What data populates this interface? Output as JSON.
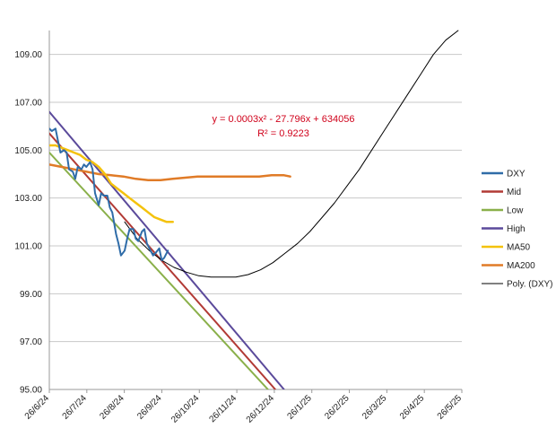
{
  "chart_data": {
    "type": "line",
    "ylim": [
      95,
      110
    ],
    "yticks": [
      "95.00",
      "97.00",
      "99.00",
      "101.00",
      "103.00",
      "105.00",
      "107.00",
      "109.00"
    ],
    "xticks": [
      "26/6/24",
      "26/7/24",
      "26/8/24",
      "26/9/24",
      "26/10/24",
      "26/11/24",
      "26/12/24",
      "26/1/25",
      "26/2/25",
      "26/3/25",
      "26/4/25",
      "26/5/25"
    ],
    "x_range": [
      "2024-06-26",
      "2025-05-26"
    ],
    "grid": true,
    "legend_position": "right",
    "trendline_equation": "y = 0.0003x² - 27.796x + 634056",
    "trendline_r2": "R² = 0.9223",
    "colors": {
      "DXY": "#2f6ca8",
      "Mid": "#b23a35",
      "Low": "#8ab04a",
      "High": "#5b4a9b",
      "MA50": "#f4c20d",
      "MA200": "#e07b27",
      "Poly": "#000000"
    },
    "series": [
      {
        "name": "DXY",
        "x": [
          "2024-06-26",
          "2024-06-28",
          "2024-07-01",
          "2024-07-03",
          "2024-07-05",
          "2024-07-08",
          "2024-07-10",
          "2024-07-12",
          "2024-07-15",
          "2024-07-17",
          "2024-07-19",
          "2024-07-22",
          "2024-07-24",
          "2024-07-26",
          "2024-07-29",
          "2024-07-31",
          "2024-08-02",
          "2024-08-05",
          "2024-08-07",
          "2024-08-09",
          "2024-08-12",
          "2024-08-14",
          "2024-08-16",
          "2024-08-19",
          "2024-08-21",
          "2024-08-23",
          "2024-08-26",
          "2024-08-28",
          "2024-08-30",
          "2024-09-02",
          "2024-09-04",
          "2024-09-06",
          "2024-09-09",
          "2024-09-11",
          "2024-09-13",
          "2024-09-16",
          "2024-09-18",
          "2024-09-20",
          "2024-09-23",
          "2024-09-25",
          "2024-09-27",
          "2024-09-30"
        ],
        "values": [
          105.9,
          105.8,
          105.9,
          105.4,
          104.9,
          105.0,
          104.9,
          104.2,
          104.1,
          103.8,
          104.3,
          104.2,
          104.4,
          104.3,
          104.5,
          104.2,
          103.2,
          102.7,
          103.2,
          103.1,
          103.1,
          102.6,
          102.4,
          101.5,
          101.1,
          100.6,
          100.8,
          101.3,
          101.7,
          101.7,
          101.3,
          101.2,
          101.6,
          101.7,
          101.1,
          100.8,
          100.6,
          100.7,
          100.9,
          100.4,
          100.5,
          100.8
        ]
      },
      {
        "name": "Mid",
        "x": [
          "2024-06-26",
          "2024-12-26"
        ],
        "values": [
          105.7,
          95.0
        ]
      },
      {
        "name": "Low",
        "x": [
          "2024-06-26",
          "2024-12-20"
        ],
        "values": [
          104.9,
          95.0
        ]
      },
      {
        "name": "High",
        "x": [
          "2024-06-26",
          "2025-01-02"
        ],
        "values": [
          106.6,
          95.0
        ]
      },
      {
        "name": "MA50",
        "x": [
          "2024-06-26",
          "2024-07-01",
          "2024-07-06",
          "2024-07-11",
          "2024-07-16",
          "2024-07-21",
          "2024-07-26",
          "2024-07-31",
          "2024-08-05",
          "2024-08-10",
          "2024-08-15",
          "2024-08-20",
          "2024-08-25",
          "2024-08-30",
          "2024-09-04",
          "2024-09-09",
          "2024-09-14",
          "2024-09-19",
          "2024-09-24",
          "2024-09-29",
          "2024-10-04"
        ],
        "values": [
          105.2,
          105.2,
          105.1,
          105.0,
          104.9,
          104.8,
          104.6,
          104.5,
          104.3,
          104.0,
          103.6,
          103.4,
          103.2,
          103.0,
          102.8,
          102.6,
          102.4,
          102.2,
          102.1,
          102.0,
          102.0
        ]
      },
      {
        "name": "MA200",
        "x": [
          "2024-06-26",
          "2024-07-06",
          "2024-07-16",
          "2024-07-26",
          "2024-08-05",
          "2024-08-15",
          "2024-08-25",
          "2024-09-04",
          "2024-09-14",
          "2024-09-24",
          "2024-10-04",
          "2024-10-14",
          "2024-10-24",
          "2024-11-03",
          "2024-11-13",
          "2024-11-23",
          "2024-12-03",
          "2024-12-13",
          "2024-12-23",
          "2025-01-02",
          "2025-01-07"
        ],
        "values": [
          104.4,
          104.3,
          104.2,
          104.1,
          104.0,
          103.95,
          103.9,
          103.8,
          103.75,
          103.75,
          103.8,
          103.85,
          103.9,
          103.9,
          103.9,
          103.9,
          103.9,
          103.9,
          103.95,
          103.95,
          103.9
        ]
      },
      {
        "name": "Poly. (DXY)",
        "x": [
          "2024-08-26",
          "2024-09-05",
          "2024-09-15",
          "2024-09-25",
          "2024-10-05",
          "2024-10-15",
          "2024-10-25",
          "2024-11-04",
          "2024-11-14",
          "2024-11-24",
          "2024-12-04",
          "2024-12-14",
          "2024-12-24",
          "2025-01-03",
          "2025-01-13",
          "2025-01-23",
          "2025-02-02",
          "2025-02-12",
          "2025-02-22",
          "2025-03-04",
          "2025-03-14",
          "2025-03-24",
          "2025-04-03",
          "2025-04-13",
          "2025-04-23",
          "2025-05-03",
          "2025-05-13",
          "2025-05-23"
        ],
        "values": [
          102.0,
          101.3,
          100.8,
          100.4,
          100.1,
          99.9,
          99.75,
          99.7,
          99.7,
          99.7,
          99.8,
          100.0,
          100.3,
          100.7,
          101.1,
          101.6,
          102.2,
          102.8,
          103.5,
          104.2,
          105.0,
          105.8,
          106.6,
          107.4,
          108.2,
          109.0,
          109.6,
          110.0
        ]
      }
    ]
  }
}
